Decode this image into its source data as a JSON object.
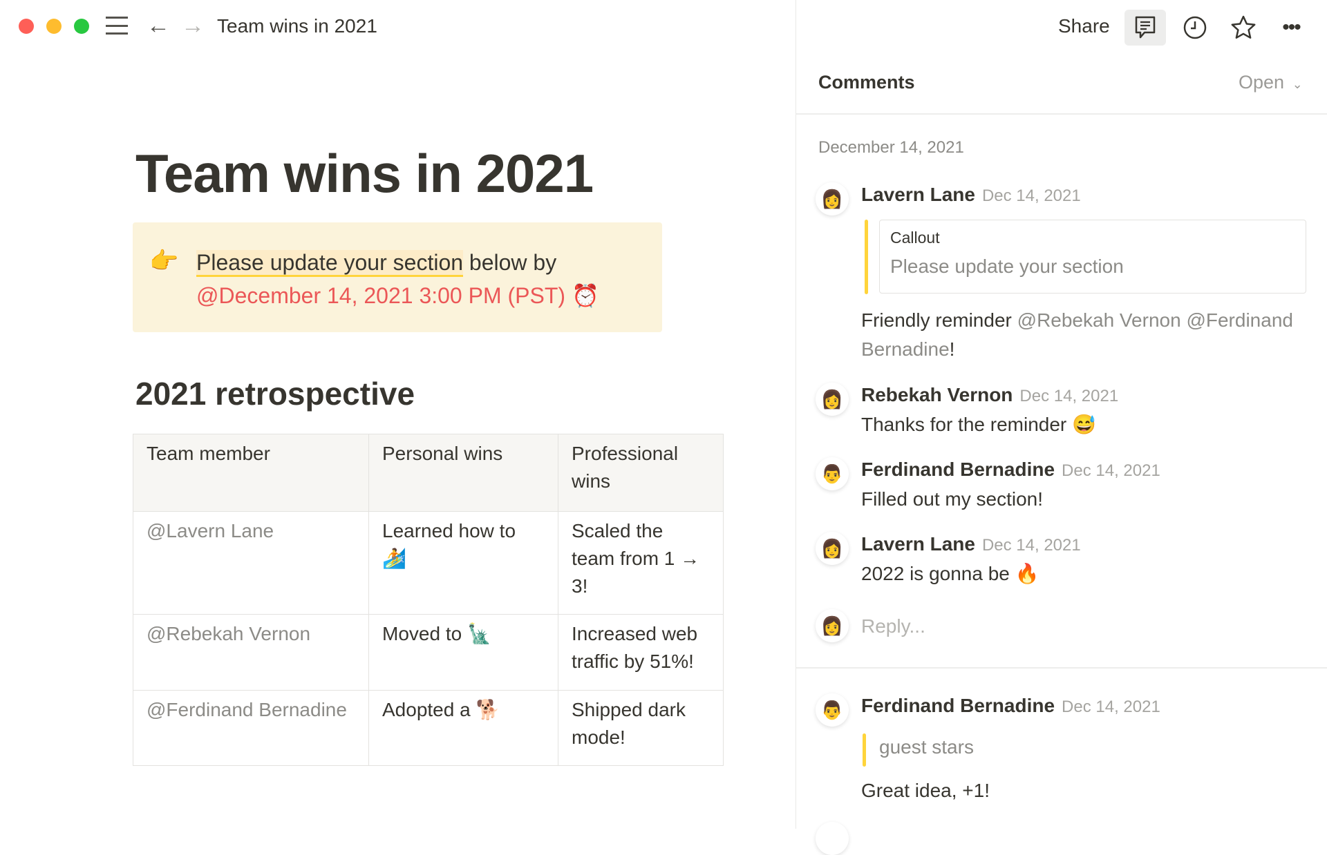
{
  "topbar": {
    "page_title": "Team wins in 2021",
    "share_label": "Share"
  },
  "page": {
    "title": "Team wins in 2021",
    "callout": {
      "emoji": "👉",
      "highlighted_text": "Please update your section",
      "text": " below by",
      "date_mention": "@December 14, 2021 3:00 PM (PST)",
      "alarm_emoji": "⏰"
    },
    "heading": "2021 retrospective",
    "table": {
      "headers": [
        "Team member",
        "Personal wins",
        "Professional wins"
      ],
      "rows": [
        [
          "@Lavern Lane",
          "Learned how to 🏄",
          "Scaled the team from 1 → 3!"
        ],
        [
          "@Rebekah Vernon",
          "Moved to 🗽",
          "Increased web traffic by 51%!"
        ],
        [
          "@Ferdinand Bernadine",
          "Adopted a 🐕",
          "Shipped dark mode!"
        ]
      ]
    }
  },
  "comments": {
    "title": "Comments",
    "filter": "Open",
    "group_date": "December 14, 2021",
    "thread1": {
      "quote_label": "Callout",
      "quote_text": "Please update your section",
      "items": [
        {
          "author": "Lavern Lane",
          "date": "Dec 14, 2021",
          "text": "Friendly reminder ",
          "mention1": "@Rebekah Vernon",
          "mention2": "@Ferdinand Bernadine",
          "suffix": "!"
        },
        {
          "author": "Rebekah Vernon",
          "date": "Dec 14, 2021",
          "text": "Thanks for the reminder 😅"
        },
        {
          "author": "Ferdinand Bernadine",
          "date": "Dec 14, 2021",
          "text": "Filled out my section!"
        },
        {
          "author": "Lavern Lane",
          "date": "Dec 14, 2021",
          "text": "2022 is gonna be 🔥"
        }
      ],
      "reply_placeholder": "Reply..."
    },
    "thread2": {
      "author": "Ferdinand Bernadine",
      "date": "Dec 14, 2021",
      "quote": "guest stars",
      "text": "Great idea, +1!"
    }
  },
  "colors": {
    "accent_red": "#eb5757",
    "callout_bg": "#fbf3db",
    "quote_bar": "#ffd43b"
  }
}
